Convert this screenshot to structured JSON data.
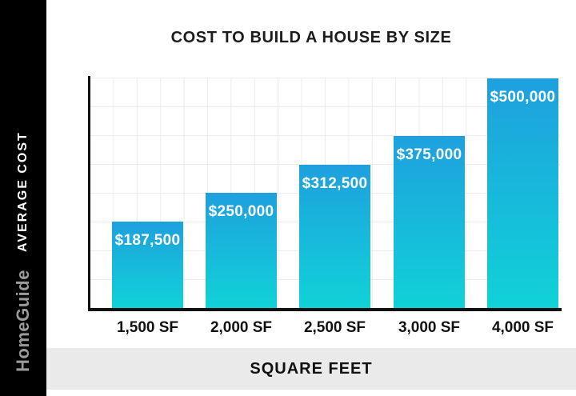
{
  "title": "COST TO BUILD A HOUSE BY SIZE",
  "sidebar": {
    "brand": "HomeGuide",
    "axis_label": "AVERAGE COST"
  },
  "footer": {
    "xlabel": "SQUARE FEET"
  },
  "chart_data": {
    "type": "bar",
    "title": "COST TO BUILD A HOUSE BY SIZE",
    "xlabel": "SQUARE FEET",
    "ylabel": "AVERAGE COST",
    "categories": [
      "1,500 SF",
      "2,000 SF",
      "2,500 SF",
      "3,000 SF",
      "4,000 SF"
    ],
    "values": [
      187500,
      250000,
      312500,
      375000,
      500000
    ],
    "value_labels": [
      "$187,500",
      "$250,000",
      "$312,500",
      "$375,000",
      "$500,000"
    ],
    "ylim": [
      0,
      500000
    ],
    "grid": true,
    "legend": "none",
    "bar_color_top": "#1EA0DE",
    "bar_color_bottom": "#10D2D7"
  },
  "colors": {
    "sidebar_bg": "#000000",
    "brand_text": "#9a9a9a",
    "axis_label_text": "#ffffff",
    "title_text": "#1c1c1c",
    "grid_line": "#ececec",
    "axis_line": "#111111",
    "footer_bg": "#eaeaea",
    "value_label_text": "#ffffff",
    "tick_text": "#111111"
  }
}
